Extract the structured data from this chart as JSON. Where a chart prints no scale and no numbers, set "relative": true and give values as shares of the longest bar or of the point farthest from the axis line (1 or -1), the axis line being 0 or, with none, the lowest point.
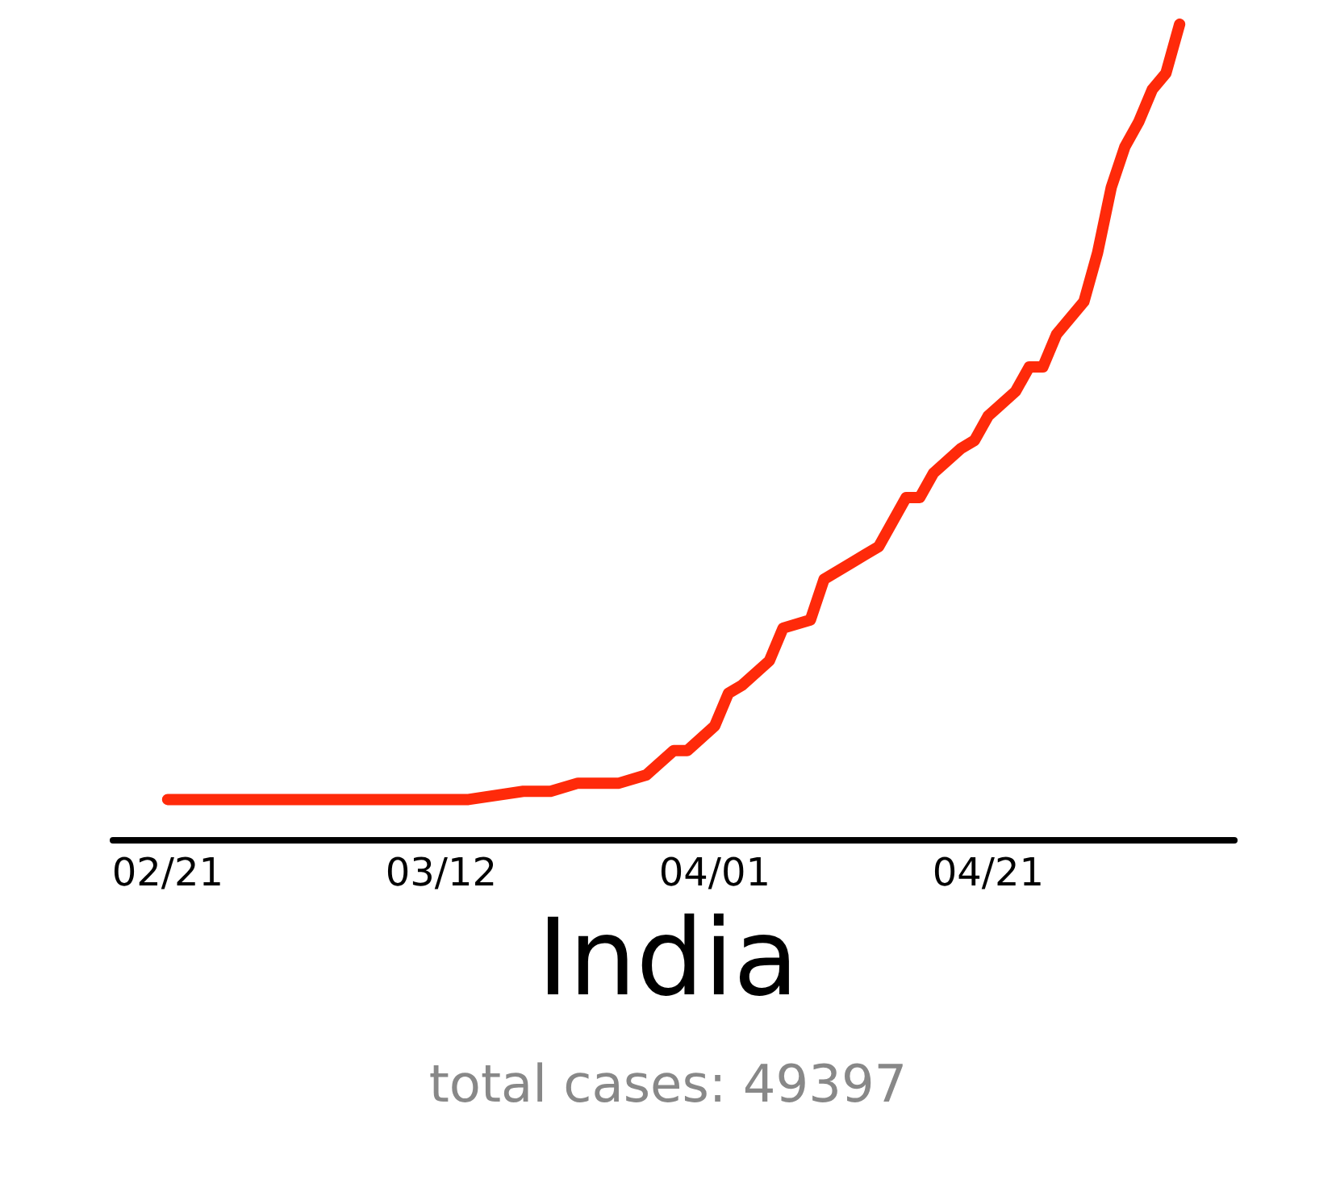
{
  "chart_data": {
    "type": "line",
    "title": "India",
    "annotations": [
      "total cases: 49397"
    ],
    "relative": true,
    "x": [
      "--02-21",
      "--02-29",
      "--03-08",
      "--03-14",
      "--03-18",
      "--03-20",
      "--03-22",
      "--03-24",
      "--03-25",
      "--03-27",
      "--03-29",
      "--03-30",
      "--04-01",
      "--04-02",
      "--04-03",
      "--04-05",
      "--04-06",
      "--04-08",
      "--04-09",
      "--04-11",
      "--04-12",
      "--04-13",
      "--04-15",
      "--04-16",
      "--04-17",
      "--04-19",
      "--04-20",
      "--04-21",
      "--04-23",
      "--04-24",
      "--04-25",
      "--04-26",
      "--04-28",
      "--04-29",
      "--04-30",
      "--05-01",
      "--05-02",
      "--05-03",
      "--05-04",
      "--05-05"
    ],
    "series": [
      {
        "color": "#ff2a0a",
        "values": [
          0.05,
          0.05,
          0.05,
          0.05,
          0.06,
          0.06,
          0.07,
          0.07,
          0.07,
          0.08,
          0.11,
          0.11,
          0.14,
          0.18,
          0.19,
          0.22,
          0.26,
          0.27,
          0.32,
          0.34,
          0.35,
          0.36,
          0.42,
          0.42,
          0.45,
          0.48,
          0.49,
          0.52,
          0.55,
          0.58,
          0.58,
          0.62,
          0.66,
          0.72,
          0.8,
          0.85,
          0.88,
          0.92,
          0.94,
          1
        ]
      }
    ],
    "xlim": [
      "--02-17",
      "--05-09"
    ],
    "xticks": [
      {
        "value": "--02-21",
        "label": "02/21"
      },
      {
        "value": "--03-12",
        "label": "03/12"
      },
      {
        "value": "--04-01",
        "label": "04/01"
      },
      {
        "value": "--04-21",
        "label": "04/21"
      }
    ],
    "line_style": "solid"
  }
}
